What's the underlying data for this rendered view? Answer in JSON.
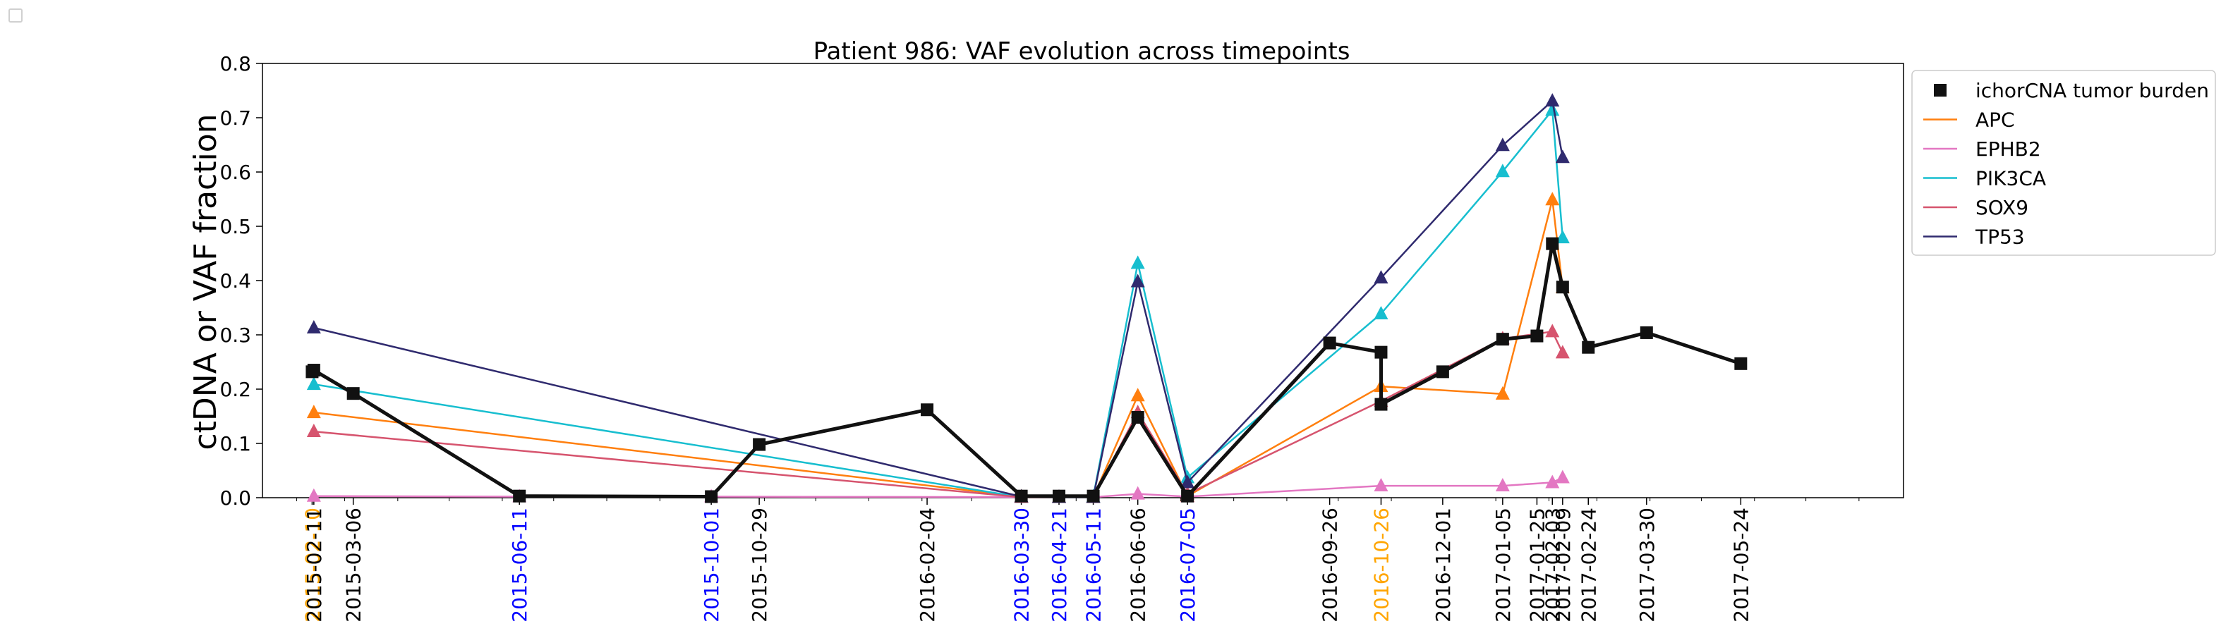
{
  "chart_data": {
    "type": "line",
    "title": "Patient 986: VAF evolution across timepoints",
    "xlabel": "",
    "ylabel": "ctDNA or VAF fraction",
    "ylim": [
      0,
      0.8
    ],
    "yticks": [
      0.0,
      0.1,
      0.2,
      0.3,
      0.4,
      0.5,
      0.6,
      0.7,
      0.8
    ],
    "ytick_labels": [
      "0.0",
      "0.1",
      "0.2",
      "0.3",
      "0.4",
      "0.5",
      "0.6",
      "0.7",
      "0.8"
    ],
    "xlim": [
      "2015-01-12",
      "2017-08-27"
    ],
    "x_ticks": [
      {
        "date": "2015-02-10",
        "color": "#ffa500"
      },
      {
        "date": "2015-02-11",
        "color": "#000000"
      },
      {
        "date": "2015-03-06",
        "color": "#000000"
      },
      {
        "date": "2015-06-11",
        "color": "#0000ff"
      },
      {
        "date": "2015-10-01",
        "color": "#0000ff"
      },
      {
        "date": "2015-10-29",
        "color": "#000000"
      },
      {
        "date": "2016-02-04",
        "color": "#000000"
      },
      {
        "date": "2016-03-30",
        "color": "#0000ff"
      },
      {
        "date": "2016-04-21",
        "color": "#0000ff"
      },
      {
        "date": "2016-05-11",
        "color": "#0000ff"
      },
      {
        "date": "2016-06-06",
        "color": "#000000"
      },
      {
        "date": "2016-07-05",
        "color": "#0000ff"
      },
      {
        "date": "2016-09-26",
        "color": "#000000"
      },
      {
        "date": "2016-10-26",
        "color": "#ffa500"
      },
      {
        "date": "2016-12-01",
        "color": "#000000"
      },
      {
        "date": "2017-01-05",
        "color": "#000000"
      },
      {
        "date": "2017-01-25",
        "color": "#000000"
      },
      {
        "date": "2017-02-03",
        "color": "#000000"
      },
      {
        "date": "2017-02-09",
        "color": "#000000"
      },
      {
        "date": "2017-02-24",
        "color": "#000000"
      },
      {
        "date": "2017-03-30",
        "color": "#000000"
      },
      {
        "date": "2017-05-24",
        "color": "#000000"
      }
    ],
    "legend_position": "outside right, top",
    "grid": false,
    "series": [
      {
        "name": "ichorCNA tumor burden",
        "color": "#111111",
        "marker": "square",
        "line_width": 5,
        "legend_line": false,
        "points": [
          {
            "x": "2015-02-10",
            "y": 0.232
          },
          {
            "x": "2015-02-11",
            "y": 0.235
          },
          {
            "x": "2015-03-06",
            "y": 0.192
          },
          {
            "x": "2015-06-11",
            "y": 0.003
          },
          {
            "x": "2015-10-01",
            "y": 0.002
          },
          {
            "x": "2015-10-29",
            "y": 0.098
          },
          {
            "x": "2016-02-04",
            "y": 0.162
          },
          {
            "x": "2016-03-30",
            "y": 0.003
          },
          {
            "x": "2016-04-21",
            "y": 0.003
          },
          {
            "x": "2016-05-11",
            "y": 0.003
          },
          {
            "x": "2016-06-06",
            "y": 0.148
          },
          {
            "x": "2016-07-05",
            "y": 0.003
          },
          {
            "x": "2016-09-26",
            "y": 0.285
          },
          {
            "x": "2016-10-26",
            "y": 0.268
          },
          {
            "x": "2016-10-26",
            "y": 0.172
          },
          {
            "x": "2016-12-01",
            "y": 0.232
          },
          {
            "x": "2017-01-05",
            "y": 0.292
          },
          {
            "x": "2017-01-25",
            "y": 0.298
          },
          {
            "x": "2017-02-03",
            "y": 0.468
          },
          {
            "x": "2017-02-09",
            "y": 0.388
          },
          {
            "x": "2017-02-24",
            "y": 0.277
          },
          {
            "x": "2017-03-30",
            "y": 0.304
          },
          {
            "x": "2017-05-24",
            "y": 0.247
          }
        ]
      },
      {
        "name": "APC",
        "color": "#ff7f0e",
        "marker": "triangle",
        "line_width": 2.5,
        "legend_line": true,
        "points": [
          {
            "x": "2015-02-11",
            "y": 0.157
          },
          {
            "x": "2016-03-30",
            "y": 0.002
          },
          {
            "x": "2016-04-21",
            "y": 0.001
          },
          {
            "x": "2016-05-11",
            "y": 0.001
          },
          {
            "x": "2016-06-06",
            "y": 0.188
          },
          {
            "x": "2016-07-05",
            "y": 0.003
          },
          {
            "x": "2016-10-26",
            "y": 0.205
          },
          {
            "x": "2017-01-05",
            "y": 0.191
          },
          {
            "x": "2017-02-03",
            "y": 0.549
          },
          {
            "x": "2017-02-09",
            "y": 0.387
          }
        ]
      },
      {
        "name": "EPHB2",
        "color": "#e377c2",
        "marker": "triangle",
        "line_width": 2.5,
        "legend_line": true,
        "points": [
          {
            "x": "2015-02-11",
            "y": 0.003
          },
          {
            "x": "2015-06-11",
            "y": 0.002
          },
          {
            "x": "2015-10-01",
            "y": 0.002
          },
          {
            "x": "2016-03-30",
            "y": 0.001
          },
          {
            "x": "2016-04-21",
            "y": 0.001
          },
          {
            "x": "2016-05-11",
            "y": 0.001
          },
          {
            "x": "2016-06-06",
            "y": 0.007
          },
          {
            "x": "2016-07-05",
            "y": 0.002
          },
          {
            "x": "2016-10-26",
            "y": 0.022
          },
          {
            "x": "2017-01-05",
            "y": 0.022
          },
          {
            "x": "2017-02-03",
            "y": 0.028
          },
          {
            "x": "2017-02-09",
            "y": 0.037
          }
        ]
      },
      {
        "name": "PIK3CA",
        "color": "#17becf",
        "marker": "triangle",
        "line_width": 2.5,
        "legend_line": true,
        "points": [
          {
            "x": "2015-02-11",
            "y": 0.209
          },
          {
            "x": "2016-03-30",
            "y": 0.001
          },
          {
            "x": "2016-04-21",
            "y": 0.001
          },
          {
            "x": "2016-05-11",
            "y": 0.002
          },
          {
            "x": "2016-06-06",
            "y": 0.432
          },
          {
            "x": "2016-07-05",
            "y": 0.037
          },
          {
            "x": "2016-10-26",
            "y": 0.339
          },
          {
            "x": "2017-01-05",
            "y": 0.601
          },
          {
            "x": "2017-02-03",
            "y": 0.714
          },
          {
            "x": "2017-02-09",
            "y": 0.479
          }
        ]
      },
      {
        "name": "SOX9",
        "color": "#d6546e",
        "marker": "triangle",
        "line_width": 2.5,
        "legend_line": true,
        "points": [
          {
            "x": "2015-02-11",
            "y": 0.122
          },
          {
            "x": "2016-03-30",
            "y": 0.001
          },
          {
            "x": "2016-04-21",
            "y": 0.001
          },
          {
            "x": "2016-05-11",
            "y": 0.001
          },
          {
            "x": "2016-06-06",
            "y": 0.157
          },
          {
            "x": "2016-07-05",
            "y": 0.007
          },
          {
            "x": "2016-10-26",
            "y": 0.178
          },
          {
            "x": "2017-01-05",
            "y": 0.293
          },
          {
            "x": "2017-02-03",
            "y": 0.306
          },
          {
            "x": "2017-02-09",
            "y": 0.267
          }
        ]
      },
      {
        "name": "TP53",
        "color": "#2f2a6e",
        "marker": "triangle",
        "line_width": 2.5,
        "legend_line": true,
        "points": [
          {
            "x": "2015-02-11",
            "y": 0.313
          },
          {
            "x": "2016-03-30",
            "y": 0.002
          },
          {
            "x": "2016-04-21",
            "y": 0.001
          },
          {
            "x": "2016-05-11",
            "y": 0.001
          },
          {
            "x": "2016-06-06",
            "y": 0.398
          },
          {
            "x": "2016-07-05",
            "y": 0.028
          },
          {
            "x": "2016-10-26",
            "y": 0.405
          },
          {
            "x": "2017-01-05",
            "y": 0.649
          },
          {
            "x": "2017-02-03",
            "y": 0.731
          },
          {
            "x": "2017-02-09",
            "y": 0.627
          }
        ]
      }
    ]
  }
}
